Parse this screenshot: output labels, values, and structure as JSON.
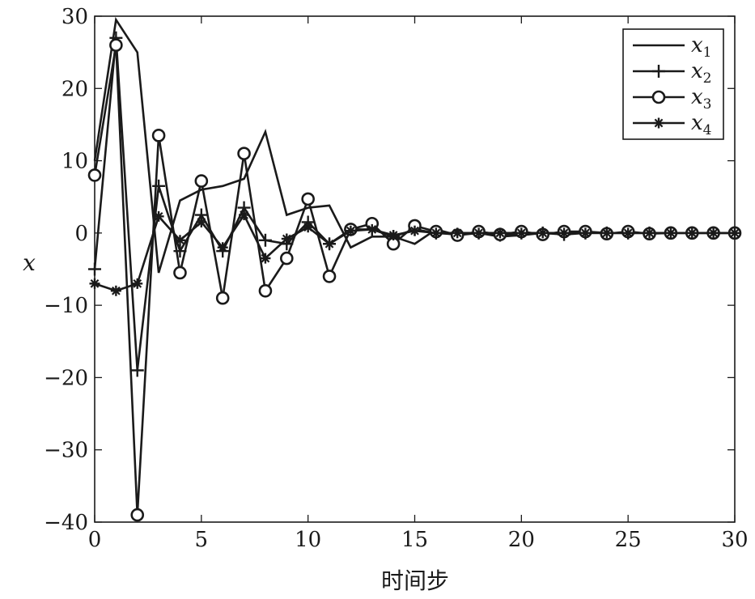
{
  "chart_data": {
    "type": "line",
    "xlabel": "时间步",
    "ylabel": "x",
    "xlim": [
      0,
      30
    ],
    "ylim": [
      -40,
      30
    ],
    "xticks": [
      0,
      5,
      10,
      15,
      20,
      25,
      30
    ],
    "yticks": [
      -40,
      -30,
      -20,
      -10,
      0,
      10,
      20,
      30
    ],
    "grid": false,
    "legend_position": "top-right",
    "x": [
      0,
      1,
      2,
      3,
      4,
      5,
      6,
      7,
      8,
      9,
      10,
      11,
      12,
      13,
      14,
      15,
      16,
      17,
      18,
      19,
      20,
      21,
      22,
      23,
      24,
      25,
      26,
      27,
      28,
      29,
      30
    ],
    "series": [
      {
        "name": "x1",
        "marker": "none",
        "values": [
          10,
          29.5,
          25,
          -5.5,
          4.5,
          6,
          6.5,
          7.5,
          14,
          2.5,
          3.5,
          3.8,
          -2,
          -0.5,
          -0.5,
          -1.5,
          0.5,
          -0.3,
          0,
          -0.5,
          -0.3,
          0,
          0,
          0.2,
          0,
          0,
          0,
          0,
          0,
          0,
          0
        ]
      },
      {
        "name": "x2",
        "marker": "plus",
        "values": [
          -5,
          27,
          -19,
          6.5,
          -2.5,
          2.5,
          -2.5,
          3.5,
          -1,
          -1.5,
          1.5,
          -1.5,
          0.5,
          0.5,
          -0.5,
          0.5,
          0,
          -0.2,
          0,
          -0.3,
          0,
          0,
          -0.2,
          0,
          0,
          0,
          0,
          0,
          0,
          0,
          0
        ]
      },
      {
        "name": "x3",
        "marker": "circle",
        "values": [
          8,
          26,
          -39,
          13.5,
          -5.5,
          7.2,
          -9,
          11,
          -8,
          -3.5,
          4.7,
          -6,
          0.5,
          1.3,
          -1.5,
          1,
          0.2,
          -0.3,
          0.2,
          -0.2,
          0.2,
          -0.2,
          0.2,
          0.2,
          -0.1,
          0.2,
          -0.1,
          0,
          0,
          0,
          0
        ]
      },
      {
        "name": "x4",
        "marker": "star",
        "values": [
          -7,
          -8,
          -7,
          2.3,
          -1,
          1.5,
          -2,
          2.5,
          -3.5,
          -0.8,
          0.8,
          -1.5,
          0.3,
          0.5,
          -0.3,
          0.3,
          0,
          0,
          0,
          0,
          0,
          0,
          0,
          0,
          0,
          0,
          0,
          0,
          0,
          0,
          0
        ]
      }
    ]
  }
}
